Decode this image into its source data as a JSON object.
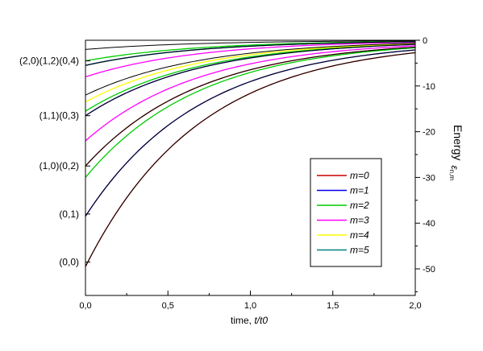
{
  "chart_data": {
    "type": "line",
    "title": "",
    "xlabel_main": "time, ",
    "xlabel_italic": "t/t0",
    "ylabel_main": "Energy",
    "ylabel_sub": "ε",
    "ylabel_subscript": "n,m",
    "xlim": [
      0,
      2
    ],
    "ylim": [
      -55,
      0
    ],
    "x_ticks": [
      {
        "value": 0,
        "label": "0,0"
      },
      {
        "value": 0.5,
        "label": "0,5"
      },
      {
        "value": 1,
        "label": "1,0"
      },
      {
        "value": 1.5,
        "label": "1,5"
      },
      {
        "value": 2,
        "label": "2,0"
      }
    ],
    "y_ticks": [
      {
        "value": 0,
        "label": "0"
      },
      {
        "value": -10,
        "label": "-10"
      },
      {
        "value": -20,
        "label": "-20"
      },
      {
        "value": -30,
        "label": "-30"
      },
      {
        "value": -40,
        "label": "-40"
      },
      {
        "value": -50,
        "label": "-50"
      }
    ],
    "left_state_labels": [
      {
        "label": "(2,0)(1,2)(0,4)",
        "value": -4.5
      },
      {
        "label": "(1,1)(0,3)",
        "value": -16.5
      },
      {
        "label": "(1,0)(0,2)",
        "value": -27.5
      },
      {
        "label": "(0,1)",
        "value": -38
      },
      {
        "label": "(0,0)",
        "value": -48.5
      }
    ],
    "grid": false,
    "legend_position": "right-middle",
    "series": [
      {
        "name": "m=0",
        "color": "#cc0000",
        "y0": [
          -49.5,
          -27.5
        ]
      },
      {
        "name": "m=1",
        "color": "#0000ee",
        "y0": [
          -38.5,
          -16.5,
          -5.5
        ]
      },
      {
        "name": "m=2",
        "color": "#00cc00",
        "y0": [
          -30,
          -15.5,
          -4.5
        ]
      },
      {
        "name": "m=3",
        "color": "#ff00ff",
        "y0": [
          -22,
          -8
        ]
      },
      {
        "name": "m=4",
        "color": "#ffff00",
        "y0": [
          -13.5
        ]
      },
      {
        "name": "m=5",
        "color": "#008080",
        "y0": [
          -5.5
        ]
      }
    ],
    "black_curves_y0": [
      -49.5,
      -38.5,
      -27.5,
      -16.5,
      -12,
      -5.5,
      -2
    ],
    "decay_rate": 1.45
  }
}
